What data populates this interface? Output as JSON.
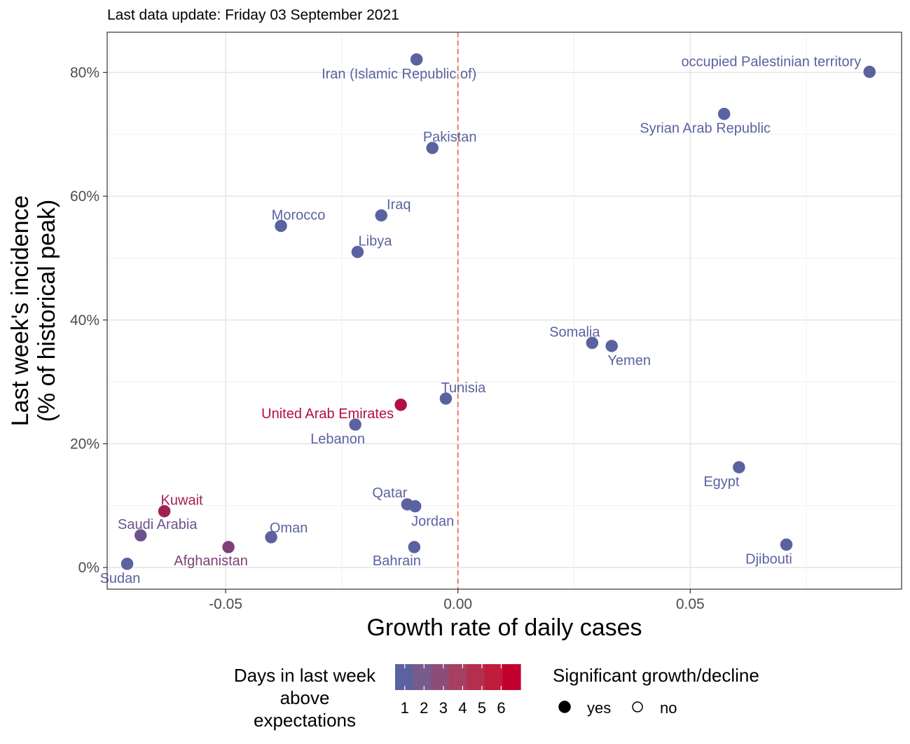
{
  "subtitle": "Last data update: Friday 03 September 2021",
  "colors": {
    "low": "#5b62a0",
    "high": "#c2002e",
    "refline": "#f07a63",
    "scale": [
      "#5b62a0",
      "#765b8c",
      "#8e4d78",
      "#a64062",
      "#b42f4d",
      "#bf1d3b",
      "#c2002e"
    ]
  },
  "chart_data": {
    "type": "scatter",
    "title": "",
    "xlabel": "Growth rate of daily cases",
    "ylabel_lines": [
      "Last week's incidence",
      "(% of historical peak)"
    ],
    "xlim": [
      -0.0755,
      0.0955
    ],
    "ylim": [
      -3.5,
      86.5
    ],
    "xticks": [
      -0.05,
      0.0,
      0.05
    ],
    "xtick_labels": [
      "-0.05",
      "0.00",
      "0.05"
    ],
    "yticks": [
      0,
      20,
      40,
      60,
      80
    ],
    "ytick_labels": [
      "0%",
      "20%",
      "40%",
      "60%",
      "80%"
    ],
    "grid": true,
    "reference_line_x": 0,
    "points": [
      {
        "label": "Iran (Islamic Republic of)",
        "x": -0.0089,
        "y": 82.1,
        "days": 1,
        "significant": "yes"
      },
      {
        "label": "occupied Palestinian territory",
        "x": 0.0886,
        "y": 80.1,
        "days": 1,
        "significant": "yes"
      },
      {
        "label": "Syrian Arab Republic",
        "x": 0.0573,
        "y": 73.3,
        "days": 1,
        "significant": "yes"
      },
      {
        "label": "Pakistan",
        "x": -0.0055,
        "y": 67.8,
        "days": 1,
        "significant": "yes"
      },
      {
        "label": "Iraq",
        "x": -0.0165,
        "y": 56.9,
        "days": 1,
        "significant": "yes"
      },
      {
        "label": "Morocco",
        "x": -0.0381,
        "y": 55.2,
        "days": 1,
        "significant": "yes"
      },
      {
        "label": "Libya",
        "x": -0.0216,
        "y": 51.0,
        "days": 1,
        "significant": "yes"
      },
      {
        "label": "Somalia",
        "x": 0.0289,
        "y": 36.3,
        "days": 1,
        "significant": "yes"
      },
      {
        "label": "Yemen",
        "x": 0.0331,
        "y": 35.8,
        "days": 1,
        "significant": "yes"
      },
      {
        "label": "Tunisia",
        "x": -0.0026,
        "y": 27.3,
        "days": 1,
        "significant": "yes"
      },
      {
        "label": "United Arab Emirates",
        "x": -0.0123,
        "y": 26.3,
        "days": 6,
        "significant": "yes"
      },
      {
        "label": "Lebanon",
        "x": -0.0221,
        "y": 23.1,
        "days": 1,
        "significant": "yes"
      },
      {
        "label": "Egypt",
        "x": 0.0605,
        "y": 16.2,
        "days": 1,
        "significant": "yes"
      },
      {
        "label": "Qatar",
        "x": -0.0109,
        "y": 10.2,
        "days": 1,
        "significant": "yes"
      },
      {
        "label": "Jordan",
        "x": -0.0092,
        "y": 9.9,
        "days": 1,
        "significant": "yes"
      },
      {
        "label": "Kuwait",
        "x": -0.0632,
        "y": 9.1,
        "days": 5,
        "significant": "yes"
      },
      {
        "label": "Saudi Arabia",
        "x": -0.0683,
        "y": 5.2,
        "days": 2,
        "significant": "yes"
      },
      {
        "label": "Oman",
        "x": -0.0402,
        "y": 4.9,
        "days": 1,
        "significant": "yes"
      },
      {
        "label": "Bahrain",
        "x": -0.0094,
        "y": 3.3,
        "days": 1,
        "significant": "yes"
      },
      {
        "label": "Afghanistan",
        "x": -0.0494,
        "y": 3.3,
        "days": 3,
        "significant": "yes"
      },
      {
        "label": "Djibouti",
        "x": 0.0707,
        "y": 3.7,
        "days": 1,
        "significant": "yes"
      },
      {
        "label": "Sudan",
        "x": -0.0712,
        "y": 0.6,
        "days": 1,
        "significant": "yes"
      }
    ]
  },
  "legend": {
    "color_title_lines": [
      "Days in last week",
      "above",
      "expectations"
    ],
    "color_ticks": [
      "1",
      "2",
      "3",
      "4",
      "5",
      "6"
    ],
    "shape_title": "Significant growth/decline",
    "shape_items": [
      "yes",
      "no"
    ]
  }
}
